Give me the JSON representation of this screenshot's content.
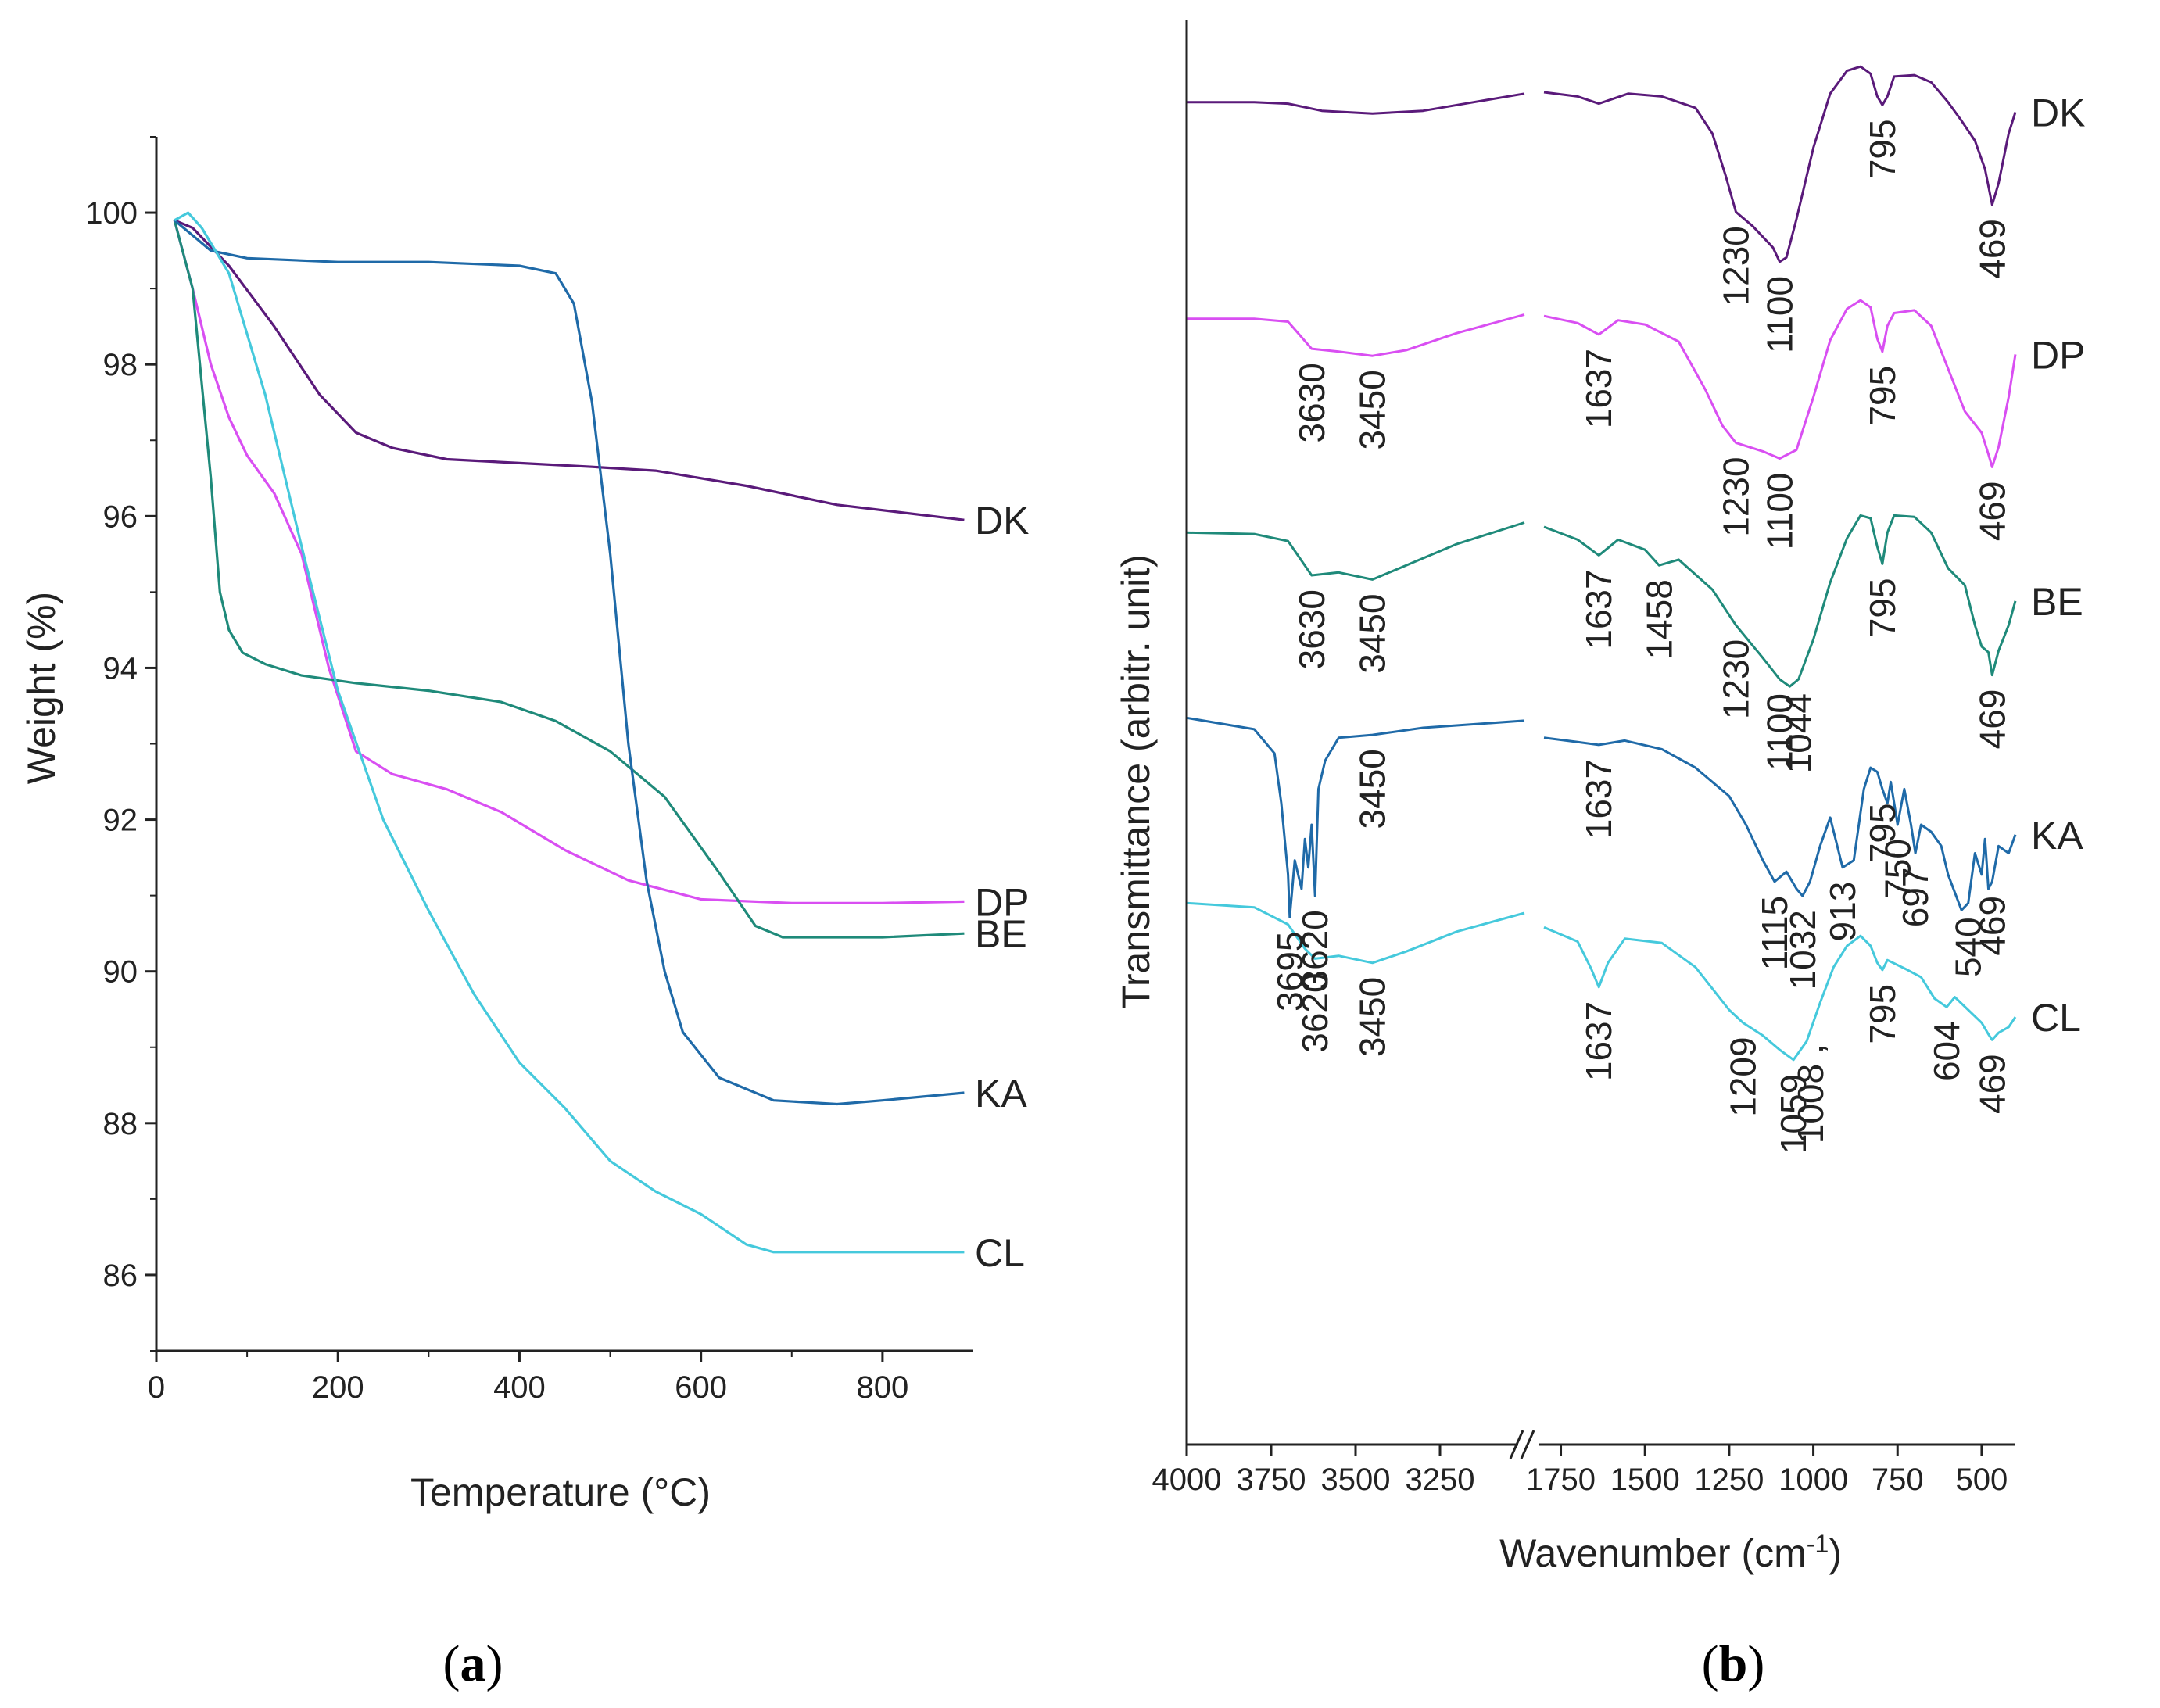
{
  "colors": {
    "DK": "#5a1a7a",
    "DP": "#d94ff2",
    "BE": "#1f8a7a",
    "KA": "#1f6aa8",
    "CL": "#45c9dc",
    "axis": "#222222"
  },
  "chart_data": [
    {
      "panel_label": {
        "open": "(",
        "letter": "a",
        "close": ")"
      },
      "type": "line",
      "title": "",
      "xlabel": "Temperature (°C)",
      "ylabel": "Weight  (%)",
      "xlim": [
        0,
        900
      ],
      "ylim": [
        85,
        101
      ],
      "xticks": [
        "0",
        "200",
        "400",
        "600",
        "800"
      ],
      "xtick_values": [
        0,
        200,
        400,
        600,
        800
      ],
      "yticks": [
        "86",
        "88",
        "90",
        "92",
        "94",
        "96",
        "98",
        "100"
      ],
      "ytick_values": [
        86,
        88,
        90,
        92,
        94,
        96,
        98,
        100
      ],
      "series": [
        {
          "name": "DK",
          "label": "DK",
          "x": [
            20,
            40,
            80,
            130,
            180,
            220,
            260,
            320,
            400,
            480,
            550,
            650,
            750,
            890
          ],
          "y": [
            99.9,
            99.8,
            99.3,
            98.5,
            97.6,
            97.1,
            96.9,
            96.75,
            96.7,
            96.65,
            96.6,
            96.4,
            96.15,
            95.95
          ]
        },
        {
          "name": "DP",
          "label": "DP",
          "x": [
            20,
            40,
            60,
            80,
            100,
            130,
            160,
            190,
            220,
            260,
            320,
            380,
            450,
            520,
            600,
            700,
            800,
            890
          ],
          "y": [
            99.9,
            99.0,
            98.0,
            97.3,
            96.8,
            96.3,
            95.5,
            94.0,
            92.9,
            92.6,
            92.4,
            92.1,
            91.6,
            91.2,
            90.95,
            90.9,
            90.9,
            90.92
          ]
        },
        {
          "name": "BE",
          "label": "BE",
          "x": [
            20,
            40,
            60,
            70,
            80,
            95,
            120,
            160,
            220,
            300,
            380,
            440,
            500,
            560,
            620,
            660,
            690,
            720,
            800,
            890
          ],
          "y": [
            99.9,
            99.0,
            96.5,
            95.0,
            94.5,
            94.2,
            94.05,
            93.9,
            93.8,
            93.7,
            93.55,
            93.3,
            92.9,
            92.3,
            91.3,
            90.6,
            90.45,
            90.45,
            90.45,
            90.5
          ]
        },
        {
          "name": "KA",
          "label": "KA",
          "x": [
            20,
            30,
            60,
            100,
            200,
            300,
            400,
            440,
            460,
            480,
            500,
            520,
            540,
            560,
            580,
            620,
            680,
            750,
            800,
            890
          ],
          "y": [
            99.9,
            99.8,
            99.5,
            99.4,
            99.35,
            99.35,
            99.3,
            99.2,
            98.8,
            97.5,
            95.5,
            93.0,
            91.2,
            90.0,
            89.2,
            88.6,
            88.3,
            88.25,
            88.3,
            88.4
          ]
        },
        {
          "name": "CL",
          "label": "CL",
          "x": [
            20,
            35,
            50,
            80,
            120,
            160,
            200,
            250,
            300,
            350,
            400,
            450,
            500,
            550,
            600,
            650,
            680,
            720,
            800,
            890
          ],
          "y": [
            99.9,
            100.0,
            99.8,
            99.2,
            97.6,
            95.6,
            93.7,
            92.0,
            90.8,
            89.7,
            88.8,
            88.2,
            87.5,
            87.1,
            86.8,
            86.4,
            86.3,
            86.3,
            86.3,
            86.3
          ]
        }
      ]
    },
    {
      "panel_label": {
        "open": "(",
        "letter": "b",
        "close": ")"
      },
      "type": "line",
      "title": "",
      "xlabel": "Wavenumber (cm",
      "xlabel_sup": "-1",
      "xlabel_close": ")",
      "ylabel": "Transmittance (arbitr. unit)",
      "x_axis_segments": [
        [
          4000,
          3000
        ],
        [
          1800,
          400
        ]
      ],
      "xticks_left": [
        "4000",
        "3750",
        "3500",
        "3250"
      ],
      "xtick_left_values": [
        4000,
        3750,
        3500,
        3250
      ],
      "xticks_right": [
        "1750",
        "1500",
        "1250",
        "1000",
        "750",
        "500"
      ],
      "xtick_right_values": [
        1750,
        1500,
        1250,
        1000,
        750,
        500
      ],
      "y_units": "arbitrary (stacked traces, 0 = bottom of plot, 100 = top)",
      "series": [
        {
          "name": "DK",
          "label": "DK",
          "x": [
            4000,
            3800,
            3700,
            3600,
            3450,
            3300,
            3150,
            3000,
            1800,
            1700,
            1637,
            1550,
            1450,
            1350,
            1300,
            1260,
            1230,
            1180,
            1120,
            1100,
            1080,
            1050,
            1000,
            950,
            900,
            860,
            830,
            810,
            795,
            780,
            760,
            700,
            650,
            600,
            560,
            520,
            490,
            469,
            450,
            420,
            400
          ],
          "y": [
            94.2,
            94.2,
            94.1,
            93.6,
            93.4,
            93.6,
            94.2,
            94.8,
            94.9,
            94.6,
            94.1,
            94.8,
            94.6,
            93.8,
            92.0,
            89.0,
            86.5,
            85.5,
            84.0,
            83.0,
            83.3,
            86.0,
            91.0,
            94.8,
            96.4,
            96.7,
            96.2,
            94.6,
            94.0,
            94.6,
            96.0,
            96.1,
            95.6,
            94.2,
            92.9,
            91.5,
            89.5,
            87.0,
            88.5,
            92.0,
            93.5
          ]
        },
        {
          "name": "DP",
          "label": "DP",
          "x": [
            4000,
            3800,
            3700,
            3630,
            3550,
            3450,
            3350,
            3200,
            3000,
            1800,
            1700,
            1637,
            1580,
            1500,
            1400,
            1320,
            1270,
            1230,
            1150,
            1100,
            1050,
            1000,
            950,
            900,
            860,
            830,
            810,
            795,
            780,
            760,
            700,
            650,
            600,
            550,
            500,
            480,
            469,
            450,
            420,
            400
          ],
          "y": [
            79.0,
            79.0,
            78.8,
            76.9,
            76.7,
            76.4,
            76.8,
            78.0,
            79.3,
            79.2,
            78.7,
            77.9,
            78.9,
            78.6,
            77.4,
            74.0,
            71.5,
            70.3,
            69.7,
            69.2,
            69.8,
            73.5,
            77.5,
            79.7,
            80.3,
            79.8,
            77.6,
            76.7,
            78.5,
            79.4,
            79.6,
            78.5,
            75.5,
            72.5,
            71.0,
            69.5,
            68.6,
            70.0,
            73.5,
            76.5
          ]
        },
        {
          "name": "BE",
          "label": "BE",
          "x": [
            4000,
            3800,
            3700,
            3630,
            3550,
            3450,
            3400,
            3300,
            3200,
            3000,
            1800,
            1700,
            1637,
            1580,
            1500,
            1458,
            1400,
            1300,
            1230,
            1150,
            1100,
            1070,
            1044,
            1000,
            950,
            900,
            860,
            830,
            810,
            795,
            780,
            760,
            700,
            650,
            600,
            550,
            520,
            500,
            480,
            469,
            450,
            420,
            400
          ],
          "y": [
            64.0,
            63.9,
            63.4,
            61.0,
            61.2,
            60.7,
            61.2,
            62.2,
            63.2,
            64.7,
            64.4,
            63.5,
            62.4,
            63.5,
            62.8,
            61.7,
            62.1,
            60.0,
            57.5,
            55.2,
            53.7,
            53.2,
            53.7,
            56.5,
            60.5,
            63.6,
            65.2,
            65.0,
            63.0,
            61.8,
            64.0,
            65.2,
            65.1,
            64.0,
            61.5,
            60.3,
            57.5,
            56.0,
            55.6,
            54.0,
            55.7,
            57.5,
            59.2
          ]
        },
        {
          "name": "KA",
          "label": "KA",
          "x": [
            4000,
            3800,
            3740,
            3720,
            3700,
            3695,
            3680,
            3660,
            3650,
            3640,
            3630,
            3620,
            3610,
            3590,
            3550,
            3450,
            3300,
            3000,
            1800,
            1700,
            1637,
            1560,
            1450,
            1350,
            1250,
            1200,
            1150,
            1115,
            1080,
            1050,
            1032,
            1010,
            980,
            950,
            913,
            880,
            850,
            830,
            810,
            795,
            780,
            770,
            750,
            730,
            710,
            697,
            680,
            650,
            620,
            600,
            560,
            540,
            520,
            500,
            490,
            480,
            469,
            450,
            420,
            400
          ],
          "y": [
            51.0,
            50.2,
            48.5,
            45.0,
            40.0,
            37.0,
            41.0,
            39.0,
            42.5,
            40.5,
            43.5,
            38.5,
            46.0,
            48.0,
            49.6,
            49.8,
            50.3,
            50.8,
            49.6,
            49.3,
            49.1,
            49.4,
            48.8,
            47.5,
            45.5,
            43.5,
            41.0,
            39.5,
            40.2,
            39.0,
            38.5,
            39.5,
            42.0,
            44.0,
            40.5,
            41.0,
            46.0,
            47.5,
            47.2,
            46.0,
            45.0,
            46.5,
            43.5,
            46.0,
            43.5,
            41.5,
            43.5,
            43.0,
            42.0,
            40.0,
            37.5,
            38.0,
            41.5,
            40.0,
            42.5,
            39.0,
            39.5,
            42.0,
            41.5,
            42.8
          ]
        },
        {
          "name": "CL",
          "label": "CL",
          "x": [
            4000,
            3800,
            3700,
            3650,
            3620,
            3550,
            3450,
            3350,
            3200,
            3000,
            1800,
            1700,
            1660,
            1637,
            1610,
            1560,
            1450,
            1350,
            1250,
            1209,
            1150,
            1100,
            1059,
            1020,
            980,
            940,
            900,
            860,
            830,
            810,
            795,
            780,
            720,
            680,
            640,
            604,
            580,
            540,
            500,
            480,
            469,
            450,
            420,
            400
          ],
          "y": [
            38.0,
            37.7,
            36.5,
            34.8,
            34.1,
            34.3,
            33.8,
            34.6,
            36.0,
            37.3,
            36.3,
            35.3,
            33.4,
            32.1,
            33.8,
            35.5,
            35.2,
            33.5,
            30.5,
            29.6,
            28.7,
            27.7,
            27.0,
            28.3,
            31.0,
            33.5,
            35.0,
            35.7,
            35.0,
            33.8,
            33.3,
            34.0,
            33.3,
            32.8,
            31.3,
            30.7,
            31.4,
            30.5,
            29.6,
            28.8,
            28.4,
            28.9,
            29.3,
            30.0
          ]
        }
      ],
      "peak_labels": [
        {
          "series": "DK",
          "text": "1230",
          "x": 1230
        },
        {
          "series": "DK",
          "text": "1100",
          "x": 1100
        },
        {
          "series": "DK",
          "text": "795",
          "x": 795
        },
        {
          "series": "DK",
          "text": "469",
          "x": 469
        },
        {
          "series": "DP",
          "text": "3630",
          "x": 3630
        },
        {
          "series": "DP",
          "text": "3450",
          "x": 3450
        },
        {
          "series": "DP",
          "text": "1637",
          "x": 1637
        },
        {
          "series": "DP",
          "text": "1230",
          "x": 1230
        },
        {
          "series": "DP",
          "text": "1100",
          "x": 1100
        },
        {
          "series": "DP",
          "text": "795",
          "x": 795
        },
        {
          "series": "DP",
          "text": "469",
          "x": 469
        },
        {
          "series": "BE",
          "text": "3630",
          "x": 3630
        },
        {
          "series": "BE",
          "text": "3450",
          "x": 3450
        },
        {
          "series": "BE",
          "text": "1637",
          "x": 1637
        },
        {
          "series": "BE",
          "text": "1458",
          "x": 1458
        },
        {
          "series": "BE",
          "text": "1230",
          "x": 1230
        },
        {
          "series": "BE",
          "text": "1100",
          "x": 1100
        },
        {
          "series": "BE",
          "text": "1044",
          "x": 1044
        },
        {
          "series": "BE",
          "text": "795",
          "x": 795
        },
        {
          "series": "BE",
          "text": "469",
          "x": 469
        },
        {
          "series": "KA",
          "text": "3695",
          "x": 3695
        },
        {
          "series": "KA",
          "text": "3620",
          "x": 3620
        },
        {
          "series": "KA",
          "text": "3450",
          "x": 3450
        },
        {
          "series": "KA",
          "text": "1637",
          "x": 1637
        },
        {
          "series": "KA",
          "text": "1115",
          "x": 1115
        },
        {
          "series": "KA",
          "text": "1032",
          "x": 1032
        },
        {
          "series": "KA",
          "text": "913",
          "x": 913
        },
        {
          "series": "KA",
          "text": "795",
          "x": 795
        },
        {
          "series": "KA",
          "text": "750",
          "x": 750
        },
        {
          "series": "KA",
          "text": "697",
          "x": 697
        },
        {
          "series": "KA",
          "text": "540",
          "x": 540
        },
        {
          "series": "KA",
          "text": "469",
          "x": 469
        },
        {
          "series": "CL",
          "text": "3620",
          "x": 3620
        },
        {
          "series": "CL",
          "text": "3450",
          "x": 3450
        },
        {
          "series": "CL",
          "text": "1637",
          "x": 1637
        },
        {
          "series": "CL",
          "text": "1209",
          "x": 1209
        },
        {
          "series": "CL",
          "text": "1059",
          "x": 1059
        },
        {
          "series": "CL",
          "text": "1008 ,",
          "x": 1008
        },
        {
          "series": "CL",
          "text": "795",
          "x": 795
        },
        {
          "series": "CL",
          "text": "604",
          "x": 604
        },
        {
          "series": "CL",
          "text": "469",
          "x": 469
        }
      ]
    }
  ]
}
